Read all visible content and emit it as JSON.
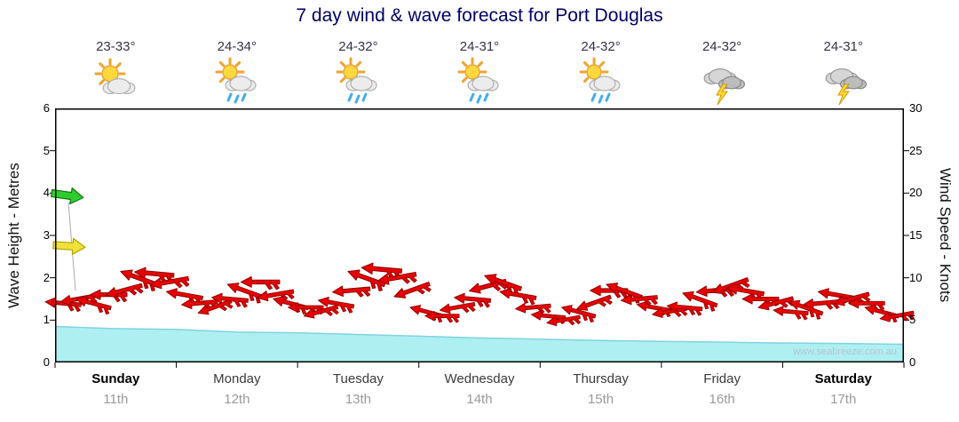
{
  "title": "7 day wind & wave forecast for Port Douglas",
  "watermark": "www.seabreeze.com.au",
  "days": [
    {
      "name": "Sunday",
      "date": "11th",
      "temp": "23-33°",
      "icon": "partly-cloudy",
      "weekend": true
    },
    {
      "name": "Monday",
      "date": "12th",
      "temp": "24-34°",
      "icon": "sun-showers",
      "weekend": false
    },
    {
      "name": "Tuesday",
      "date": "13th",
      "temp": "24-32°",
      "icon": "sun-showers",
      "weekend": false
    },
    {
      "name": "Wednesday",
      "date": "14th",
      "temp": "24-31°",
      "icon": "sun-showers",
      "weekend": false
    },
    {
      "name": "Thursday",
      "date": "15th",
      "temp": "24-32°",
      "icon": "sun-showers",
      "weekend": false
    },
    {
      "name": "Friday",
      "date": "16th",
      "temp": "24-32°",
      "icon": "storm",
      "weekend": false
    },
    {
      "name": "Saturday",
      "date": "17th",
      "temp": "24-31°",
      "icon": "storm",
      "weekend": true
    }
  ],
  "axes": {
    "left": {
      "title": "Wave Height - Metres",
      "ticks": [
        0,
        1,
        2,
        3,
        4,
        5,
        6
      ],
      "range": [
        0,
        6
      ]
    },
    "right": {
      "title": "Wind Speed - Knots",
      "ticks": [
        0,
        5,
        10,
        15,
        20,
        25,
        30
      ],
      "range": [
        0,
        30
      ]
    }
  },
  "markers": [
    {
      "name": "swell-marker-arrow",
      "metres": 3.95,
      "color": "#2ecc2e",
      "edge": "#117711",
      "rotation": 8,
      "x_svg": 12
    },
    {
      "name": "wind-marker-arrow",
      "metres": 2.75,
      "color": "#f0e23a",
      "edge": "#b0a400",
      "rotation": 4,
      "x_svg": 14
    }
  ],
  "colors": {
    "title": "#000066",
    "wave_fill": "#aeeff2",
    "wave_edge": "#7fd4dd",
    "arrow": "#e60000",
    "arrow_edge": "#8f0000",
    "axis": "#000000",
    "date_text": "#9a9a9a",
    "watermark": "#b7c4d4"
  },
  "chart_data": {
    "type": "area",
    "title": "7 day wind & wave forecast for Port Douglas",
    "x_unit": "days (0 = start of Sunday 11th, 7 = end of Saturday 17th)",
    "ylabel_left": "Wave Height - Metres",
    "ylabel_right": "Wind Speed - Knots",
    "ylim_left": [
      0,
      6
    ],
    "ylim_right": [
      0,
      30
    ],
    "grid": false,
    "legend": "none",
    "series": [
      {
        "name": "Wave Height (m)",
        "axis": "left",
        "style": "filled-area",
        "color": "#aeeff2",
        "x": [
          0,
          0.5,
          1,
          1.5,
          2,
          2.5,
          3,
          3.5,
          4,
          4.5,
          5,
          5.5,
          6,
          6.5,
          7
        ],
        "values": [
          0.85,
          0.8,
          0.78,
          0.72,
          0.7,
          0.66,
          0.62,
          0.58,
          0.55,
          0.52,
          0.5,
          0.48,
          0.46,
          0.45,
          0.43
        ]
      },
      {
        "name": "Wind Speed (knots)",
        "axis": "right",
        "style": "red-wind-arrows",
        "color": "#e60000",
        "x": [
          0.06,
          0.185,
          0.31,
          0.435,
          0.56,
          0.685,
          0.81,
          0.935,
          1.06,
          1.185,
          1.31,
          1.435,
          1.56,
          1.685,
          1.81,
          1.935,
          2.06,
          2.185,
          2.31,
          2.435,
          2.56,
          2.685,
          2.81,
          2.935,
          3.06,
          3.185,
          3.31,
          3.435,
          3.56,
          3.685,
          3.81,
          3.935,
          4.06,
          4.185,
          4.31,
          4.435,
          4.56,
          4.685,
          4.81,
          4.935,
          5.06,
          5.185,
          5.31,
          5.435,
          5.56,
          5.685,
          5.81,
          5.935,
          6.06,
          6.185,
          6.31,
          6.435,
          6.56,
          6.685,
          6.81,
          6.935
        ],
        "values": [
          7,
          7.5,
          7,
          8,
          8.5,
          10,
          10.5,
          9.5,
          8,
          7,
          6.5,
          7.5,
          8.5,
          9.5,
          8,
          7,
          6.5,
          6,
          7,
          8.5,
          10,
          11,
          10,
          8.5,
          6,
          5.5,
          6.5,
          7.5,
          9,
          9.5,
          8,
          6.5,
          5.5,
          5,
          6,
          7,
          8.5,
          8.5,
          7.5,
          6.5,
          6,
          6.5,
          7.5,
          8.5,
          9,
          8.5,
          7.5,
          7,
          6,
          6.5,
          7,
          8,
          7.5,
          7,
          6,
          5.5
        ],
        "arrow_rotation_deg": [
          185,
          170,
          195,
          180,
          165,
          200,
          185,
          170,
          190,
          175,
          160,
          185,
          200,
          180,
          170,
          195,
          180,
          165,
          190,
          175,
          200,
          185,
          170,
          160,
          195,
          180,
          170,
          185,
          165,
          200,
          190,
          175,
          185,
          170,
          195,
          160,
          180,
          200,
          175,
          190,
          170,
          185,
          200,
          175,
          160,
          190,
          180,
          165,
          185,
          200,
          175,
          190,
          165,
          180,
          195,
          170
        ]
      }
    ]
  }
}
